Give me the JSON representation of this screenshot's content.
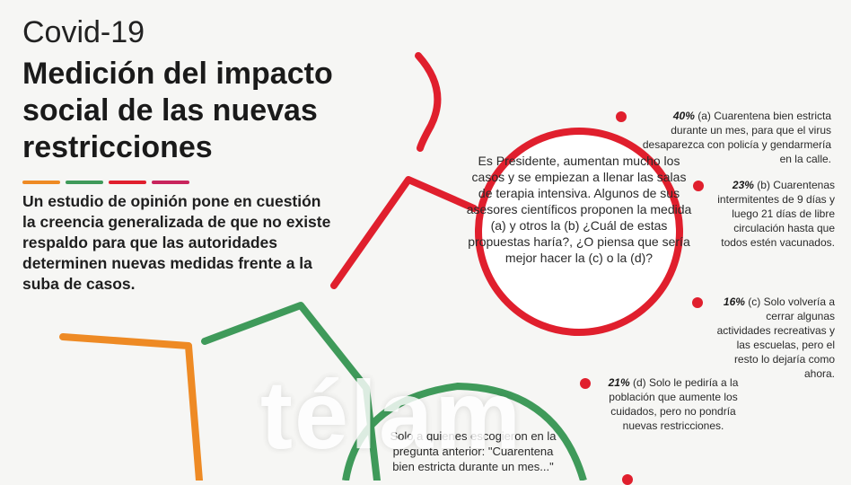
{
  "header": {
    "topic": "Covid-19",
    "title": "Medición del impacto social de las nuevas restricciones",
    "subtitle": "Un estudio de opinión pone en cuestión la creencia generalizada de que no existe respaldo para que las autoridades determinen nuevas medidas frente a la suba de casos."
  },
  "colors": {
    "red": "#e01f2d",
    "green": "#3f9a5a",
    "orange": "#ee8a24",
    "magenta": "#c8245c"
  },
  "question": "Es Presidente, aumentan mucho los casos y se empiezan a llenar las salas de terapia intensiva. Algunos de sus asesores científicos proponen la medida (a) y otros la (b) ¿Cuál de estas propuestas haría?, ¿O piensa que sería mejor hacer la (c) o la (d)?",
  "options": [
    {
      "pct": "40%",
      "text": "(a) Cuarentena bien estricta durante un mes, para que el virus desaparezca con policía y gendarmería en la calle."
    },
    {
      "pct": "23%",
      "text": "(b) Cuarentenas intermitentes de 9 días y luego 21 días de libre circulación hasta que todos estén vacunados."
    },
    {
      "pct": "16%",
      "text": "(c) Solo volvería a cerrar algunas actividades recreativas y las escuelas, pero el resto lo dejaría como ahora."
    },
    {
      "pct": "21%",
      "text": "(d) Solo le pediría a la población que aumente los cuidados, pero no pondría nuevas restricciones."
    }
  ],
  "followup": "Solo a quienes escogieron en la pregunta anterior: \"Cuarentena bien estricta durante un mes...\"",
  "watermark": "télam"
}
